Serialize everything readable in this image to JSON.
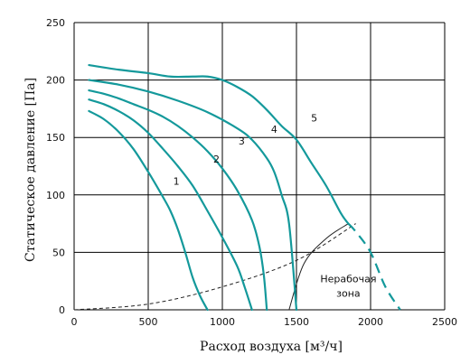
{
  "chart_data": {
    "type": "line",
    "xlabel": "Расход воздуха [м³/ч]",
    "ylabel": "Статическое давление [Па]",
    "xlim": [
      0,
      2500
    ],
    "ylim": [
      0,
      250
    ],
    "xticks": [
      0,
      500,
      1000,
      1500,
      2000,
      2500
    ],
    "yticks": [
      0,
      50,
      100,
      150,
      200,
      250
    ],
    "grid": true,
    "series_color": "#14999b",
    "series": [
      {
        "name": "1",
        "points": [
          [
            100,
            173
          ],
          [
            200,
            166
          ],
          [
            300,
            155
          ],
          [
            400,
            140
          ],
          [
            500,
            120
          ],
          [
            600,
            98
          ],
          [
            650,
            86
          ],
          [
            700,
            70
          ],
          [
            750,
            50
          ],
          [
            800,
            28
          ],
          [
            850,
            12
          ],
          [
            900,
            0
          ]
        ]
      },
      {
        "name": "2",
        "points": [
          [
            100,
            183
          ],
          [
            200,
            179
          ],
          [
            300,
            173
          ],
          [
            400,
            165
          ],
          [
            500,
            154
          ],
          [
            600,
            140
          ],
          [
            700,
            125
          ],
          [
            800,
            108
          ],
          [
            900,
            86
          ],
          [
            1000,
            63
          ],
          [
            1100,
            38
          ],
          [
            1150,
            20
          ],
          [
            1200,
            0
          ]
        ]
      },
      {
        "name": "3",
        "points": [
          [
            100,
            191
          ],
          [
            200,
            188
          ],
          [
            300,
            184
          ],
          [
            400,
            179
          ],
          [
            500,
            174
          ],
          [
            600,
            168
          ],
          [
            700,
            160
          ],
          [
            800,
            150
          ],
          [
            900,
            138
          ],
          [
            1000,
            123
          ],
          [
            1100,
            104
          ],
          [
            1200,
            78
          ],
          [
            1250,
            55
          ],
          [
            1280,
            30
          ],
          [
            1300,
            0
          ]
        ]
      },
      {
        "name": "4",
        "points": [
          [
            100,
            200
          ],
          [
            300,
            196
          ],
          [
            500,
            190
          ],
          [
            700,
            182
          ],
          [
            900,
            172
          ],
          [
            1100,
            158
          ],
          [
            1200,
            148
          ],
          [
            1300,
            132
          ],
          [
            1350,
            120
          ],
          [
            1400,
            100
          ],
          [
            1450,
            75
          ],
          [
            1500,
            0
          ]
        ]
      },
      {
        "name": "5",
        "points": [
          [
            100,
            213
          ],
          [
            300,
            209
          ],
          [
            500,
            206
          ],
          [
            650,
            203
          ],
          [
            800,
            203
          ],
          [
            900,
            203
          ],
          [
            1000,
            200
          ],
          [
            1100,
            194
          ],
          [
            1200,
            186
          ],
          [
            1300,
            174
          ],
          [
            1400,
            160
          ],
          [
            1500,
            148
          ],
          [
            1600,
            128
          ],
          [
            1700,
            108
          ],
          [
            1800,
            84
          ],
          [
            1850,
            75
          ]
        ]
      }
    ],
    "series5_dashed_extension": [
      [
        1850,
        75
      ],
      [
        1900,
        68
      ],
      [
        2000,
        50
      ],
      [
        2100,
        20
      ],
      [
        2200,
        0
      ]
    ],
    "system_curve_dashed": [
      [
        0,
        0
      ],
      [
        500,
        5
      ],
      [
        1000,
        20
      ],
      [
        1500,
        43
      ],
      [
        1900,
        75
      ]
    ],
    "zone_boundary": [
      [
        1450,
        0
      ],
      [
        1550,
        40
      ],
      [
        1700,
        62
      ],
      [
        1850,
        75
      ]
    ],
    "curve_labels": [
      {
        "text": "1",
        "x": 690,
        "y": 109
      },
      {
        "text": "2",
        "x": 960,
        "y": 128
      },
      {
        "text": "3",
        "x": 1130,
        "y": 144
      },
      {
        "text": "4",
        "x": 1350,
        "y": 154
      },
      {
        "text": "5",
        "x": 1620,
        "y": 164
      }
    ],
    "zone_label_lines": [
      "Нерабочая",
      "зона"
    ],
    "zone_label_anchor": [
      1850,
      24
    ]
  }
}
